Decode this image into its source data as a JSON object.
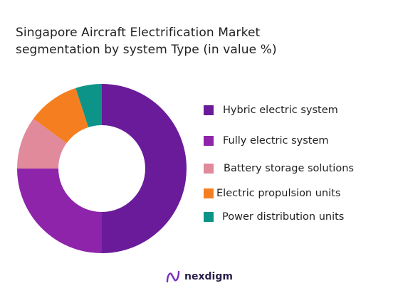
{
  "title_line1": "Singapore Aircraft Electrification Market",
  "title_line2": "segmentation by system Type (in value %)",
  "brand": {
    "name": "nexdigm",
    "logo_icon": "nexdigm-logo-icon",
    "color": "#6a1b9a"
  },
  "chart_data": {
    "type": "pie",
    "donut": true,
    "title": "Singapore Aircraft Electrification Market segmentation by system Type (in value %)",
    "legend_position": "right",
    "series": [
      {
        "name": "Hybric electric system",
        "value": 50,
        "color": "#6a1b9a"
      },
      {
        "name": "Fully electric system",
        "value": 25,
        "color": "#8e24aa"
      },
      {
        "name": "Battery storage solutions",
        "value": 10,
        "color": "#e08a9c"
      },
      {
        "name": "Electric propulsion units",
        "value": 10,
        "color": "#f57f20"
      },
      {
        "name": "Power distribution units",
        "value": 5,
        "color": "#0d9488"
      }
    ]
  }
}
